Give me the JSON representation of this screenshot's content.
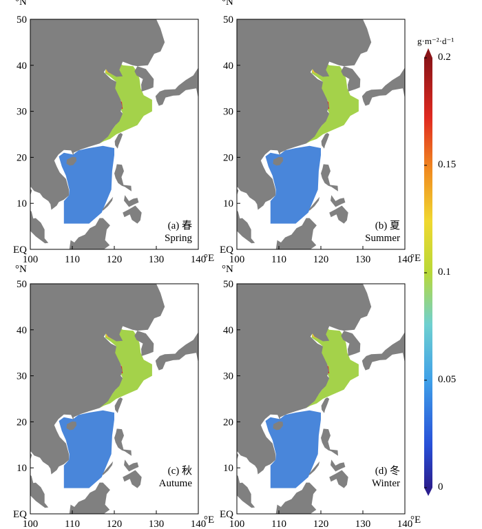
{
  "panels": [
    {
      "id": "a",
      "label_top": "(a) 春",
      "label_bottom": "Spring"
    },
    {
      "id": "b",
      "label_top": "(b) 夏",
      "label_bottom": "Summer"
    },
    {
      "id": "c",
      "label_top": "(c) 秋",
      "label_bottom": "Autume"
    },
    {
      "id": "d",
      "label_top": "(d) 冬",
      "label_bottom": "Winter"
    }
  ],
  "axes": {
    "lat_unit": "°N",
    "lon_unit": "°E",
    "lat_ticks": [
      "EQ",
      "10",
      "20",
      "30",
      "40",
      "50"
    ],
    "lon_ticks": [
      "100",
      "110",
      "120",
      "130",
      "140"
    ],
    "lat_range": [
      0,
      50
    ],
    "lon_range": [
      100,
      140
    ]
  },
  "colorbar": {
    "unit": "g·m⁻²·d⁻¹",
    "ticks": [
      "0",
      "0.05",
      "0.1",
      "0.15",
      "0.2"
    ],
    "min": 0,
    "max": 0.2,
    "colormap": "jet"
  },
  "colors": {
    "land": "#808080",
    "ocean_no_data": "#ffffff",
    "low": "#3f7fd8",
    "mid": "#9fd040",
    "high": "#e02020"
  }
}
